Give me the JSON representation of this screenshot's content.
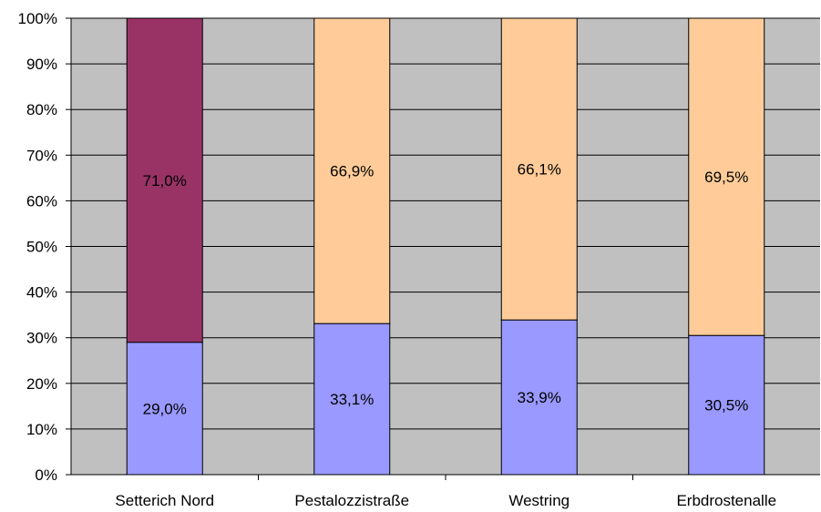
{
  "chart_data": {
    "type": "bar",
    "stacked": true,
    "categories": [
      "Setterich Nord",
      "Pestalozzistraße",
      "Westring",
      "Erbdrostenalle"
    ],
    "series": [
      {
        "values": [
          29.0,
          33.1,
          33.9,
          30.5
        ],
        "labels": [
          "29,0%",
          "33,1%",
          "33,9%",
          "30,5%"
        ],
        "colors": [
          "#9999ff",
          "#9999ff",
          "#9999ff",
          "#9999ff"
        ]
      },
      {
        "values": [
          71.0,
          66.9,
          66.1,
          69.5
        ],
        "labels": [
          "71,0%",
          "66,9%",
          "66,1%",
          "69,5%"
        ],
        "colors": [
          "#993366",
          "#ffcc99",
          "#ffcc99",
          "#ffcc99"
        ]
      }
    ],
    "y_ticks": [
      "0%",
      "10%",
      "20%",
      "30%",
      "40%",
      "50%",
      "60%",
      "70%",
      "80%",
      "90%",
      "100%"
    ],
    "ylim": [
      0,
      100
    ],
    "grid": true,
    "plot_background": "#c0c0c0",
    "legend": "none"
  }
}
